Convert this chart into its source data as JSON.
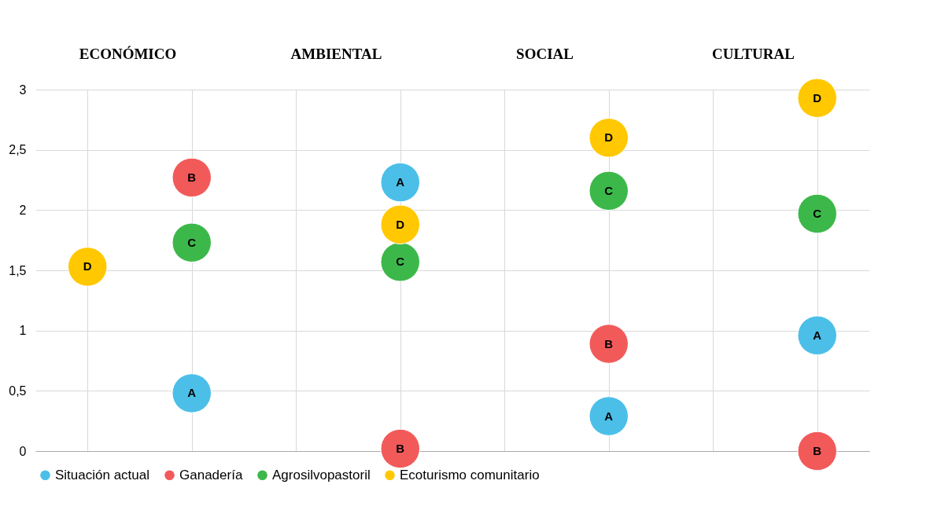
{
  "chart_data": {
    "type": "scatter",
    "annotations": [
      "ECONÓMICO",
      "AMBIENTAL",
      "SOCIAL",
      "CULTURAL"
    ],
    "categories": [
      null,
      null,
      null,
      null,
      null,
      null,
      null,
      null
    ],
    "ylim": [
      0,
      3
    ],
    "yticks": [
      0,
      {
        "value": 0.5,
        "label": "0,5"
      },
      1,
      {
        "value": 1.5,
        "label": "1,5"
      },
      2,
      {
        "value": 2.5,
        "label": "2,5"
      },
      3
    ],
    "grid": true,
    "legend": "bottom",
    "tick_labels": "y",
    "marker": "circle",
    "series": [
      {
        "name": "Situación actual",
        "color": "#4bbfe8",
        "values": [
          null,
          0.48,
          null,
          2.23,
          null,
          0.29,
          null,
          0.96
        ],
        "value_labels": [
          null,
          "A",
          null,
          "A",
          null,
          "A",
          null,
          "A"
        ]
      },
      {
        "name": "Ganadería",
        "color": "#f25a5a",
        "values": [
          null,
          2.27,
          null,
          0.02,
          null,
          0.89,
          null,
          0
        ],
        "value_labels": [
          null,
          "B",
          null,
          "B",
          null,
          "B",
          null,
          "B"
        ]
      },
      {
        "name": "Agrosilvopastoril",
        "color": "#3cb84a",
        "values": [
          null,
          1.73,
          null,
          1.57,
          null,
          2.16,
          null,
          1.97
        ],
        "value_labels": [
          null,
          "C",
          null,
          "C",
          null,
          "C",
          null,
          "C"
        ]
      },
      {
        "name": "Ecoturismo comunitario",
        "color": "#ffc800",
        "values": [
          1.53,
          null,
          null,
          1.88,
          null,
          2.6,
          null,
          2.93
        ],
        "value_labels": [
          "D",
          null,
          null,
          "D",
          null,
          "D",
          null,
          "D"
        ]
      }
    ]
  }
}
